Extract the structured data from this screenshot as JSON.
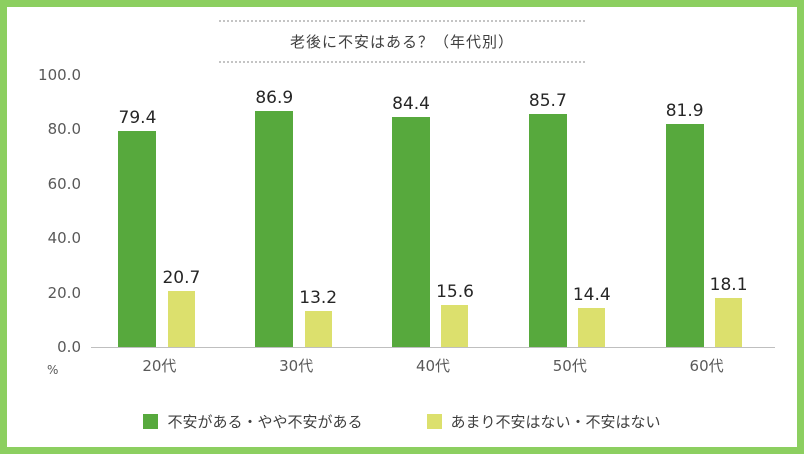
{
  "colors": {
    "frame_border": "#8ccf60",
    "axis_line": "#bfbfbf"
  },
  "chart_data": {
    "type": "bar",
    "title": "老後に不安はある？（年代別）",
    "unit_label": "%",
    "categories": [
      "20代",
      "30代",
      "40代",
      "50代",
      "60代"
    ],
    "series": [
      {
        "name": "不安がある・やや不安がある",
        "color": "#57a93d",
        "values": [
          79.4,
          86.9,
          84.4,
          85.7,
          81.9
        ]
      },
      {
        "name": "あまり不安はない・不安はない",
        "color": "#dce06d",
        "values": [
          20.7,
          13.2,
          15.6,
          14.4,
          18.1
        ]
      }
    ],
    "ylim": [
      0,
      100
    ],
    "yticks": [
      "0.0",
      "20.0",
      "40.0",
      "60.0",
      "80.0",
      "100.0"
    ],
    "grid": false,
    "legend_position": "bottom"
  }
}
